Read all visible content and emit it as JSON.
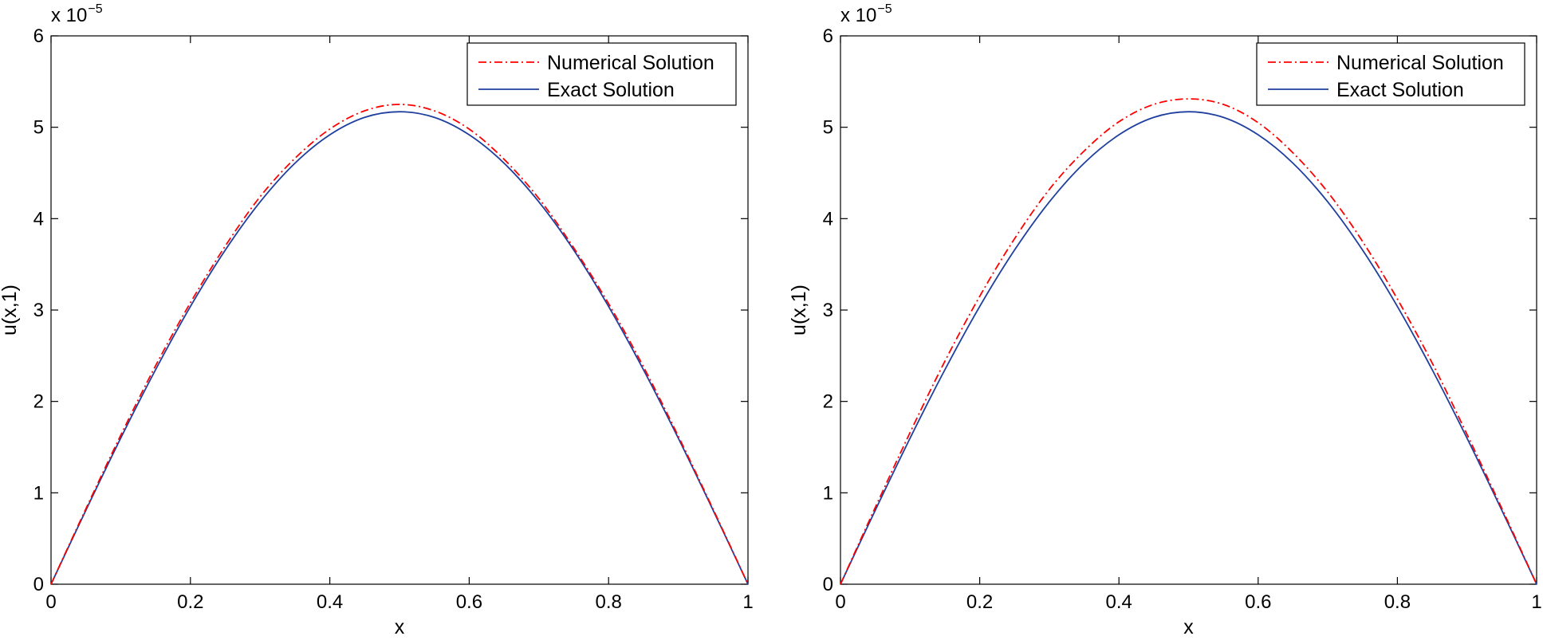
{
  "chart_data": [
    {
      "type": "line",
      "title": "",
      "xlabel": "x",
      "ylabel": "u(x,1)",
      "y_scale_prefix": "x 10",
      "y_scale_exponent": "−5",
      "xlim": [
        0,
        1
      ],
      "ylim": [
        0,
        6
      ],
      "xticks": [
        0,
        0.2,
        0.4,
        0.6,
        0.8,
        1
      ],
      "xtick_labels": [
        "0",
        "0.2",
        "0.4",
        "0.6",
        "0.8",
        "1"
      ],
      "yticks": [
        0,
        1,
        2,
        3,
        4,
        5,
        6
      ],
      "ytick_labels": [
        "0",
        "1",
        "2",
        "3",
        "4",
        "5",
        "6"
      ],
      "grid": false,
      "legend_position": "top-right",
      "series": [
        {
          "name": "Numerical Solution",
          "style": "dash-dot",
          "color": "#ff0000",
          "x": [
            0,
            0.05,
            0.1,
            0.15,
            0.2,
            0.25,
            0.3,
            0.35,
            0.4,
            0.45,
            0.5,
            0.55,
            0.6,
            0.65,
            0.7,
            0.75,
            0.8,
            0.85,
            0.9,
            0.95,
            1
          ],
          "y": [
            0,
            0.825,
            1.63,
            2.39,
            3.08,
            3.7,
            4.24,
            4.66,
            4.98,
            5.18,
            5.25,
            5.18,
            4.98,
            4.65,
            4.22,
            3.68,
            3.07,
            2.38,
            1.62,
            0.82,
            0
          ]
        },
        {
          "name": "Exact Solution",
          "style": "solid",
          "color": "#1f3f9f",
          "x": [
            0,
            0.05,
            0.1,
            0.15,
            0.2,
            0.25,
            0.3,
            0.35,
            0.4,
            0.45,
            0.5,
            0.55,
            0.6,
            0.65,
            0.7,
            0.75,
            0.8,
            0.85,
            0.9,
            0.95,
            1
          ],
          "y": [
            0,
            0.809,
            1.598,
            2.347,
            3.039,
            3.656,
            4.183,
            4.607,
            4.917,
            5.108,
            5.17,
            5.108,
            4.917,
            4.607,
            4.183,
            3.656,
            3.039,
            2.347,
            1.598,
            0.809,
            0
          ]
        }
      ]
    },
    {
      "type": "line",
      "title": "",
      "xlabel": "x",
      "ylabel": "u(x,1)",
      "y_scale_prefix": "x 10",
      "y_scale_exponent": "−5",
      "xlim": [
        0,
        1
      ],
      "ylim": [
        0,
        6
      ],
      "xticks": [
        0,
        0.2,
        0.4,
        0.6,
        0.8,
        1
      ],
      "xtick_labels": [
        "0",
        "0.2",
        "0.4",
        "0.6",
        "0.8",
        "1"
      ],
      "yticks": [
        0,
        1,
        2,
        3,
        4,
        5,
        6
      ],
      "ytick_labels": [
        "0",
        "1",
        "2",
        "3",
        "4",
        "5",
        "6"
      ],
      "grid": false,
      "legend_position": "top-right",
      "series": [
        {
          "name": "Numerical Solution",
          "style": "dash-dot",
          "color": "#ff0000",
          "x": [
            0,
            0.05,
            0.1,
            0.15,
            0.2,
            0.25,
            0.3,
            0.35,
            0.4,
            0.45,
            0.5,
            0.55,
            0.6,
            0.65,
            0.7,
            0.75,
            0.8,
            0.85,
            0.9,
            0.95,
            1
          ],
          "y": [
            0,
            0.84,
            1.66,
            2.44,
            3.15,
            3.78,
            4.32,
            4.74,
            5.06,
            5.25,
            5.31,
            5.25,
            5.05,
            4.72,
            4.29,
            3.75,
            3.12,
            2.42,
            1.64,
            0.83,
            0
          ]
        },
        {
          "name": "Exact Solution",
          "style": "solid",
          "color": "#1f3f9f",
          "x": [
            0,
            0.05,
            0.1,
            0.15,
            0.2,
            0.25,
            0.3,
            0.35,
            0.4,
            0.45,
            0.5,
            0.55,
            0.6,
            0.65,
            0.7,
            0.75,
            0.8,
            0.85,
            0.9,
            0.95,
            1
          ],
          "y": [
            0,
            0.809,
            1.598,
            2.347,
            3.039,
            3.656,
            4.183,
            4.607,
            4.917,
            5.108,
            5.17,
            5.108,
            4.917,
            4.607,
            4.183,
            3.656,
            3.039,
            2.347,
            1.598,
            0.809,
            0
          ]
        }
      ]
    }
  ]
}
